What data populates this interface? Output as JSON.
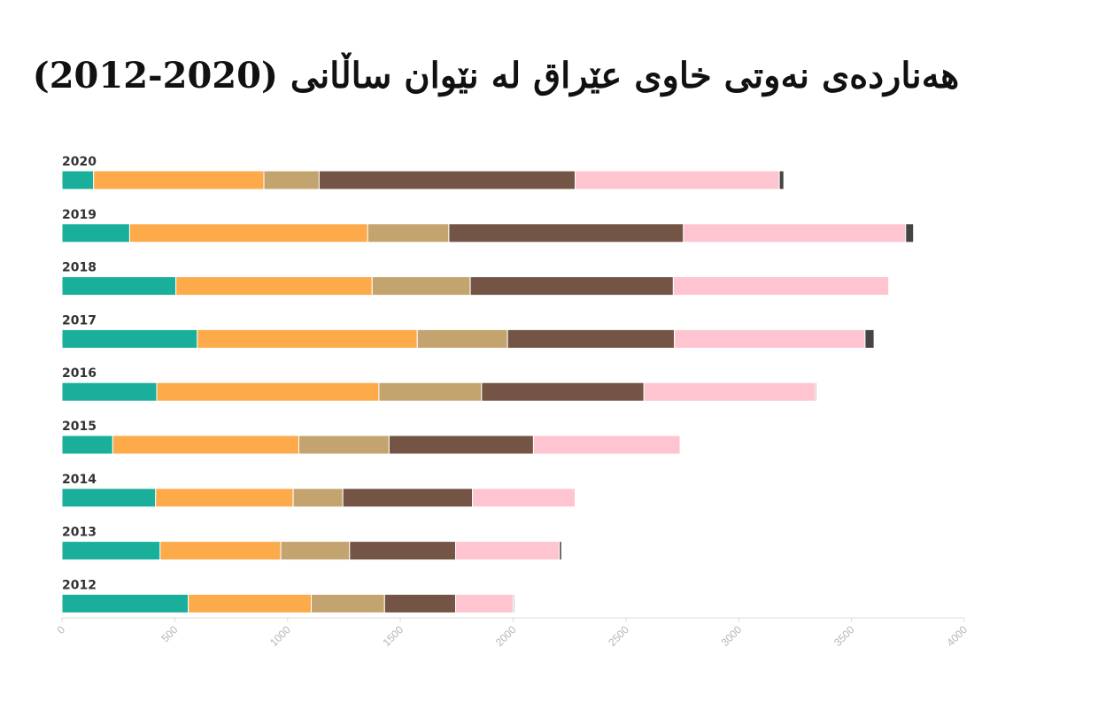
{
  "chart_data": {
    "type": "bar",
    "orientation": "horizontal",
    "stacked": true,
    "title": "هەناردەی نەوتی خاوی عێراق  لە نێوان ساڵانی (2020-2012)",
    "categories": [
      "2020",
      "2019",
      "2018",
      "2017",
      "2016",
      "2015",
      "2014",
      "2013",
      "2012"
    ],
    "series": [
      {
        "color": "#1aaf9b",
        "values": [
          140,
          300,
          505,
          600,
          420,
          225,
          415,
          435,
          560
        ]
      },
      {
        "color": "#fdaa4b",
        "values": [
          755,
          1055,
          870,
          975,
          985,
          825,
          610,
          535,
          545
        ]
      },
      {
        "color": "#c4a46e",
        "values": [
          245,
          360,
          435,
          400,
          455,
          400,
          220,
          305,
          325
        ]
      },
      {
        "color": "#735445",
        "values": [
          1135,
          1040,
          900,
          740,
          720,
          640,
          575,
          470,
          315
        ]
      },
      {
        "color": "#fec5d0",
        "values": [
          905,
          985,
          955,
          845,
          760,
          650,
          455,
          460,
          255
        ]
      },
      {
        "color": "#444444",
        "values": [
          20,
          35,
          0,
          40,
          5,
          0,
          0,
          10,
          5
        ]
      }
    ],
    "xlim": [
      0,
      4000
    ],
    "xticks": [
      "0",
      "500",
      "1000",
      "1500",
      "2000",
      "2500",
      "3000",
      "3500",
      "4000"
    ],
    "grid": false,
    "legend": "none"
  }
}
